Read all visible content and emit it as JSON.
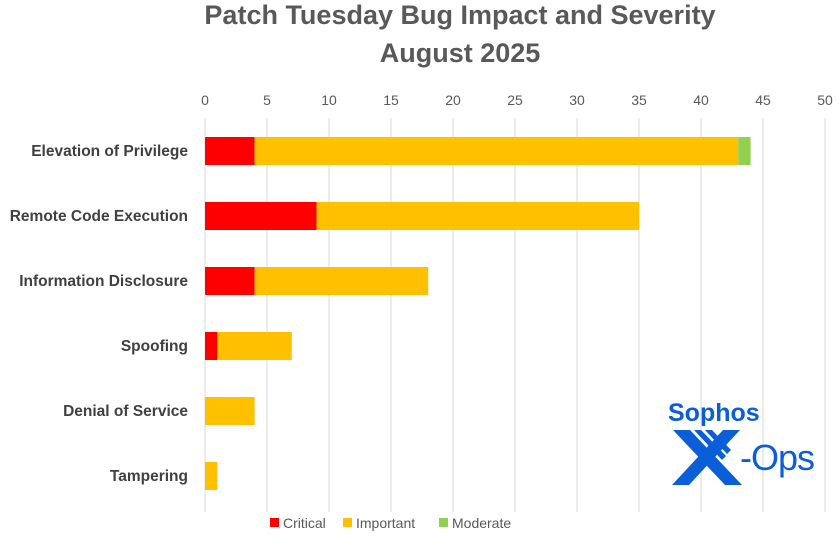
{
  "chart_data": {
    "type": "bar",
    "orientation": "horizontal",
    "stacked": true,
    "title": "Patch Tuesday Bug Impact and Severity",
    "subtitle": "August 2025",
    "categories": [
      "Elevation of Privilege",
      "Remote Code Execution",
      "Information Disclosure",
      "Spoofing",
      "Denial of Service",
      "Tampering"
    ],
    "series": [
      {
        "name": "Critical",
        "color": "#FF0000",
        "values": [
          4,
          9,
          4,
          1,
          0,
          0
        ]
      },
      {
        "name": "Important",
        "color": "#FFC000",
        "values": [
          39,
          26,
          14,
          6,
          4,
          1
        ]
      },
      {
        "name": "Moderate",
        "color": "#92D050",
        "values": [
          1,
          0,
          0,
          0,
          0,
          0
        ]
      }
    ],
    "xlim": [
      0,
      50
    ],
    "xticks": [
      0,
      5,
      10,
      15,
      20,
      25,
      30,
      35,
      40,
      45,
      50
    ],
    "xlabel": "",
    "ylabel": "",
    "grid": true,
    "axis_position": "top",
    "legend": "bottom"
  },
  "logo": {
    "text_top": "Sophos",
    "text_bottom": "X-Ops",
    "color": "#0A5ED7"
  }
}
